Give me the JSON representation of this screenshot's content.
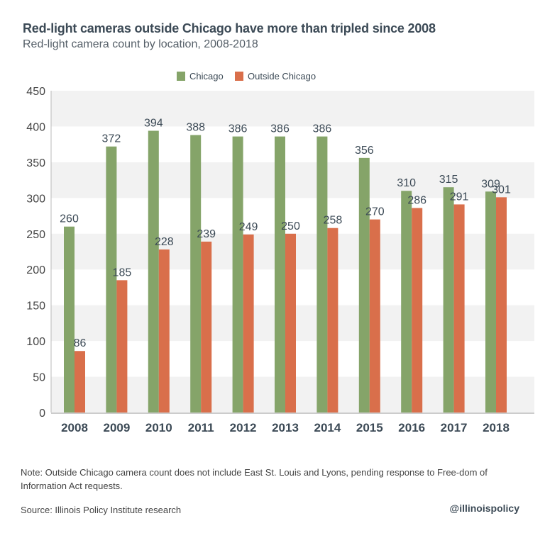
{
  "title": "Red-light cameras outside Chicago have more than tripled since 2008",
  "subtitle": "Red-light camera count by location, 2008-2018",
  "note": "Note: Outside Chicago camera count does not include East St. Louis and Lyons, pending response to Free-dom of Information Act requests.",
  "source": "Source: Illinois Policy Institute research",
  "handle": "@illinoispolicy",
  "chart_data": {
    "type": "bar",
    "title": "Red-light cameras outside Chicago have more than tripled since 2008",
    "subtitle": "Red-light camera count by location, 2008-2018",
    "categories": [
      "2008",
      "2009",
      "2010",
      "2011",
      "2012",
      "2013",
      "2014",
      "2015",
      "2016",
      "2017",
      "2018"
    ],
    "series": [
      {
        "name": "Chicago",
        "color": "#85a469",
        "values": [
          260,
          372,
          394,
          388,
          386,
          386,
          386,
          356,
          310,
          315,
          309
        ]
      },
      {
        "name": "Outside Chicago",
        "color": "#d96f4b",
        "values": [
          86,
          185,
          228,
          239,
          249,
          250,
          258,
          270,
          286,
          291,
          301
        ]
      }
    ],
    "ylim": [
      0,
      450
    ],
    "yticks": [
      0,
      50,
      100,
      150,
      200,
      250,
      300,
      350,
      400,
      450
    ],
    "legend": "top-center",
    "grid": "alternating horizontal bands",
    "data_labels": true
  }
}
